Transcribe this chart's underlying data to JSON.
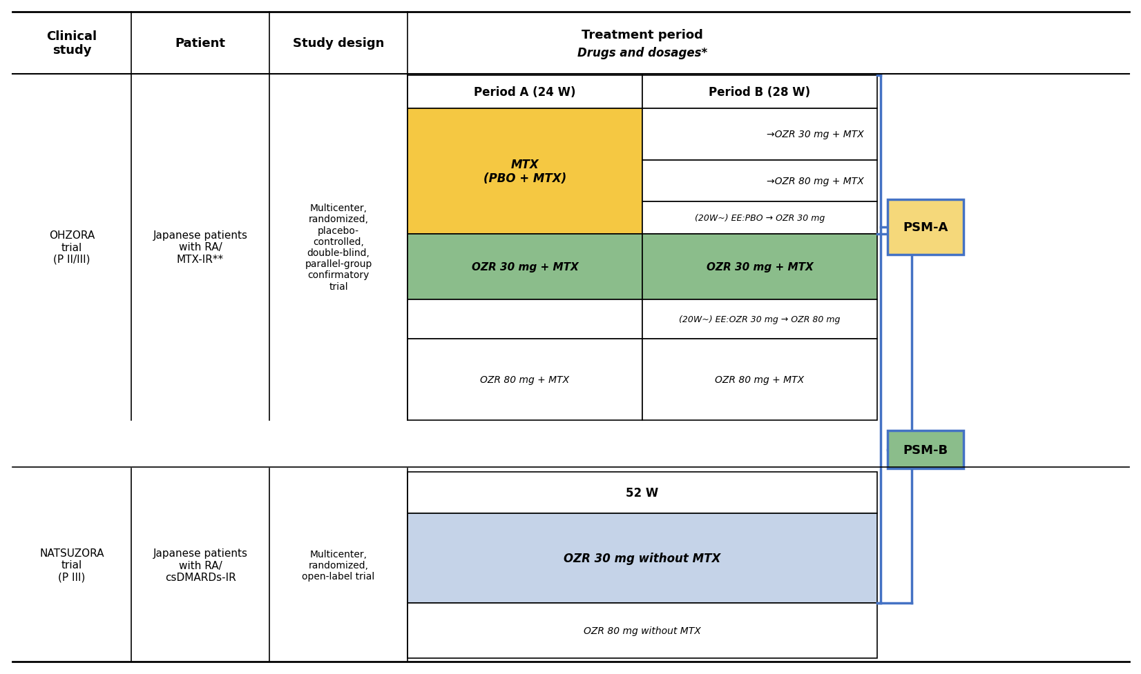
{
  "bg_color": "#ffffff",
  "blue_c": "#4472C4",
  "gold_fill": "#F5C842",
  "green_fill": "#8BBD8B",
  "blue_fill": "#C5D3E8",
  "ohzora_study": "OHZORA\ntrial\n(P II/III)",
  "ohzora_patient": "Japanese patients\nwith RA/\nMTX-IR**",
  "ohzora_design": "Multicenter,\nrandomized,\nplacebo-\ncontrolled,\ndouble-blind,\nparallel-group\nconfirmatory\ntrial",
  "natsuzora_study": "NATSUZORA\ntrial\n(P III)",
  "natsuzora_patient": "Japanese patients\nwith RA/\ncsDMARDs-IR",
  "natsuzora_design": "Multicenter,\nrandomized,\nopen-label trial",
  "hdr_clinical": "Clinical\nstudy",
  "hdr_patient": "Patient",
  "hdr_design": "Study design",
  "hdr_treatment": "Treatment period",
  "hdr_drugs": "Drugs and dosages*",
  "period_a": "Period A (24 W)",
  "period_b": "Period B (28 W)",
  "mtx_pbo": "MTX\n(PBO + MTX)",
  "ozr30_mtx_b1": "→OZR 30 mg + MTX",
  "ozr80_mtx_b1": "→OZR 80 mg + MTX",
  "ee_pbo": "(20W~) EE:PBO → OZR 30 mg",
  "ozr30_mtx_a2": "OZR 30 mg + MTX",
  "ozr30_mtx_b2": "OZR 30 mg + MTX",
  "ee_ozr": "(20W~) EE:OZR 30 mg → OZR 80 mg",
  "ozr80_mtx_a3": "OZR 80 mg + MTX",
  "ozr80_mtx_b3": "OZR 80 mg + MTX",
  "nat_52w": "52 W",
  "nat_ozr30": "OZR 30 mg without MTX",
  "nat_ozr80": "OZR 80 mg without MTX",
  "psm_a": "PSM-A",
  "psm_b": "PSM-B"
}
